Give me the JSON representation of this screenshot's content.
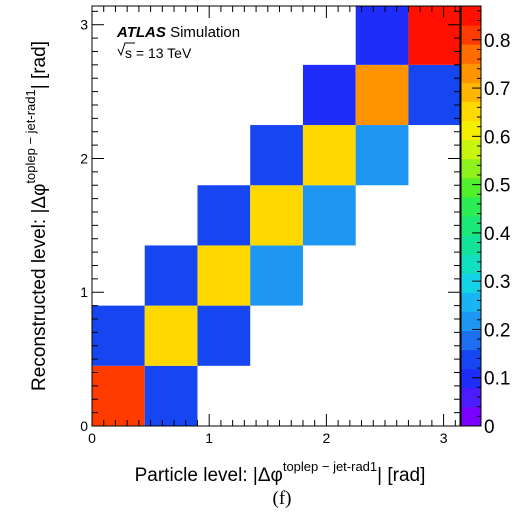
{
  "chart_data": {
    "type": "heatmap",
    "experiment_label": "ATLAS",
    "status_label": "Simulation",
    "energy_label": {
      "prefix": "s",
      "text": " = 13 TeV"
    },
    "x_edges": [
      0,
      0.45,
      0.9,
      1.35,
      1.8,
      2.25,
      2.7,
      3.14
    ],
    "y_edges": [
      0,
      0.45,
      0.9,
      1.35,
      1.8,
      2.25,
      2.7,
      3.14
    ],
    "cells": [
      {
        "ix": 0,
        "iy": 0,
        "value": 0.82
      },
      {
        "ix": 1,
        "iy": 0,
        "value": 0.12
      },
      {
        "ix": 0,
        "iy": 1,
        "value": 0.12
      },
      {
        "ix": 1,
        "iy": 1,
        "value": 0.64
      },
      {
        "ix": 2,
        "iy": 1,
        "value": 0.13
      },
      {
        "ix": 1,
        "iy": 2,
        "value": 0.12
      },
      {
        "ix": 2,
        "iy": 2,
        "value": 0.64
      },
      {
        "ix": 3,
        "iy": 2,
        "value": 0.22
      },
      {
        "ix": 2,
        "iy": 3,
        "value": 0.12
      },
      {
        "ix": 3,
        "iy": 3,
        "value": 0.64
      },
      {
        "ix": 4,
        "iy": 3,
        "value": 0.22
      },
      {
        "ix": 3,
        "iy": 4,
        "value": 0.12
      },
      {
        "ix": 4,
        "iy": 4,
        "value": 0.64
      },
      {
        "ix": 5,
        "iy": 4,
        "value": 0.22
      },
      {
        "ix": 4,
        "iy": 5,
        "value": 0.11
      },
      {
        "ix": 5,
        "iy": 5,
        "value": 0.74
      },
      {
        "ix": 6,
        "iy": 5,
        "value": 0.12
      },
      {
        "ix": 5,
        "iy": 6,
        "value": 0.11
      },
      {
        "ix": 6,
        "iy": 6,
        "value": 0.84
      }
    ],
    "xlim": [
      0,
      3.14
    ],
    "ylim": [
      0,
      3.14
    ],
    "x_ticks": [
      0,
      1,
      2,
      3
    ],
    "y_ticks": [
      0,
      1,
      2,
      3
    ],
    "xlabel": {
      "before": "Particle level: |Δφ",
      "sup": "toplep − jet-rad1",
      "after": "| [rad]"
    },
    "ylabel": {
      "before": "Reconstructed level: |Δφ",
      "sup": "toplep − jet-rad1",
      "after": "| [rad]"
    },
    "zlim": [
      0,
      0.87
    ],
    "z_ticks": [
      "0",
      "0.1",
      "0.2",
      "0.3",
      "0.4",
      "0.5",
      "0.6",
      "0.7",
      "0.8"
    ],
    "colormap": [
      "#7a00ff",
      "#4b1cff",
      "#1f2dfb",
      "#1646f2",
      "#1b6ff0",
      "#1e97f2",
      "#19b4f2",
      "#14d2e8",
      "#13dec0",
      "#14e29a",
      "#1ce87a",
      "#2aee52",
      "#50f02a",
      "#8cf21a",
      "#c8f40e",
      "#f4ef00",
      "#ffd800",
      "#ffb600",
      "#ff9400",
      "#ff6c00",
      "#ff3b00",
      "#ff1000"
    ],
    "caption": "(f)"
  }
}
